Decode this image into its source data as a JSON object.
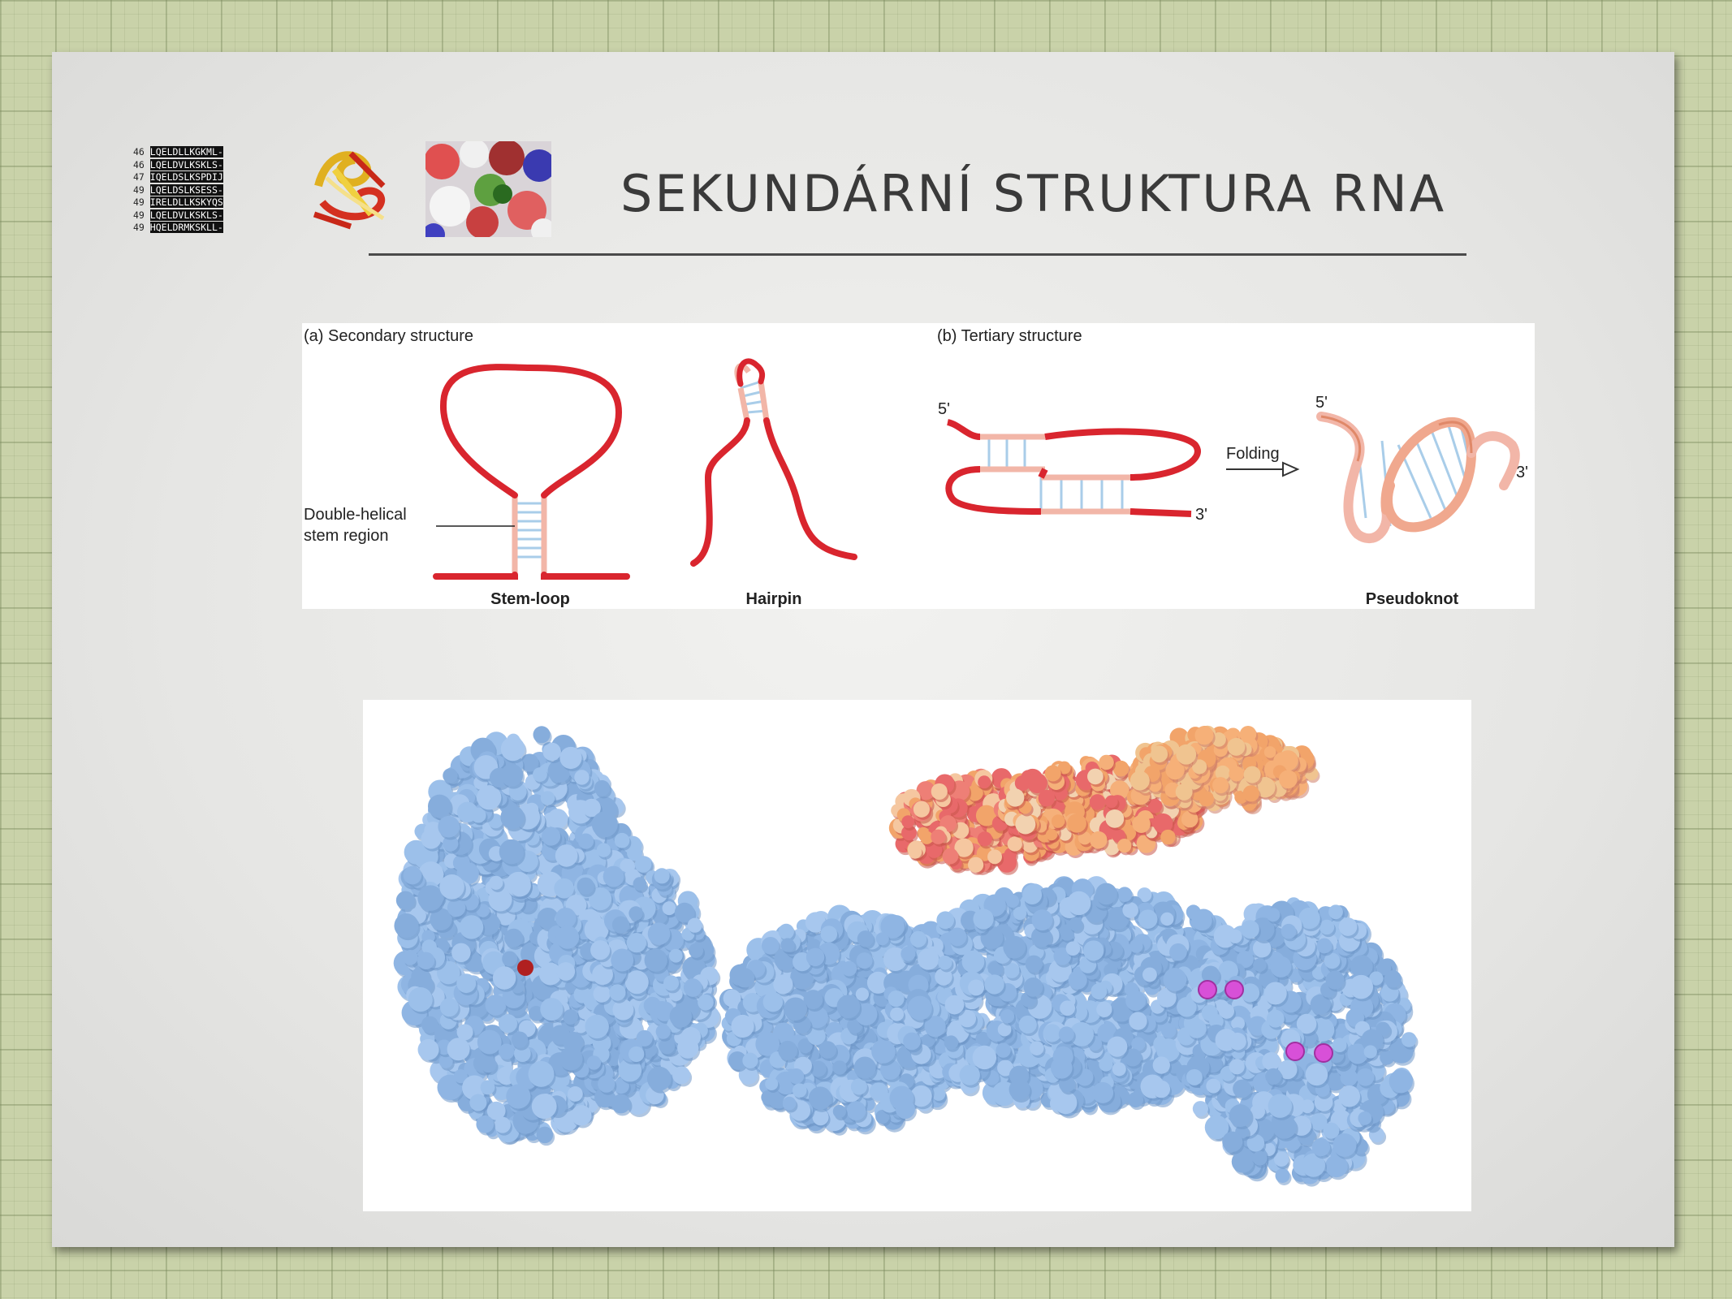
{
  "slide": {
    "title": "SEKUNDÁRNÍ STRUKTURA RNA"
  },
  "logo_sequence": {
    "rows": [
      {
        "num": "46",
        "text": "LQELDLLKGKML-"
      },
      {
        "num": "46",
        "text": "LQELDVLKSKLS-"
      },
      {
        "num": "47",
        "text": "IQELDSLKSPDIJ"
      },
      {
        "num": "49",
        "text": "LQELDSLKSESS-"
      },
      {
        "num": "49",
        "text": "IRELDLLKSKYQS"
      },
      {
        "num": "49",
        "text": "LQELDVLKSKLS-"
      },
      {
        "num": "49",
        "text": "HQELDRMKSKLL-"
      }
    ]
  },
  "figure_rna": {
    "panel_a_title": "(a) Secondary structure",
    "panel_b_title": "(b) Tertiary structure",
    "stem_annotation_line1": "Double-helical",
    "stem_annotation_line2": "stem region",
    "stem_loop_label": "Stem-loop",
    "hairpin_label": "Hairpin",
    "pseudoknot_label": "Pseudoknot",
    "folding_label": "Folding",
    "five_prime_a": "5'",
    "three_prime_a": "3'",
    "five_prime_b": "5'",
    "three_prime_b": "3'",
    "colors": {
      "strand": "#d9252e",
      "base_pair": "#a9cde9",
      "stem_backbone": "#f2b6a8"
    }
  },
  "figure_molecules": {
    "colors": {
      "protein": "#8fb5e3",
      "protein_shadow": "#6f97c8",
      "rna_red": "#e8696a",
      "rna_orange": "#f2a46a",
      "ion": "#d850d8",
      "active_site": "#b02020"
    }
  }
}
